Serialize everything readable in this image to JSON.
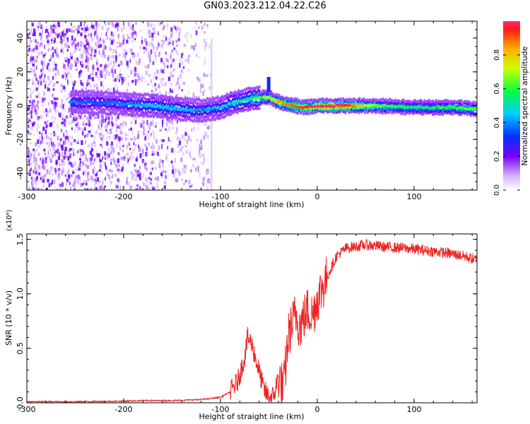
{
  "title": "GN03.2023.212.04.22.C26",
  "chart_data": [
    {
      "type": "heatmap",
      "xlabel": "Height of straight line (km)",
      "ylabel": "Frequency (Hz)",
      "xlim": [
        -300,
        165
      ],
      "ylim": [
        -50,
        50
      ],
      "x_ticks": [
        -300,
        -200,
        -100,
        0,
        100
      ],
      "y_ticks": [
        -40,
        -20,
        0,
        20,
        40
      ],
      "colorbar": {
        "label": "Normalized spectral amplitude",
        "range": [
          0,
          1
        ],
        "ticks": [
          "0.0",
          "0.2",
          "0.4",
          "0.6",
          "0.8"
        ],
        "colormap": "rainbow (violet → blue → cyan → green → yellow → red)"
      },
      "ridge": [
        {
          "x": -255,
          "freq": 2,
          "amp": 0.35
        },
        {
          "x": -230,
          "freq": 2,
          "amp": 0.3
        },
        {
          "x": -200,
          "freq": 1,
          "amp": 0.35
        },
        {
          "x": -170,
          "freq": 0,
          "amp": 0.4
        },
        {
          "x": -140,
          "freq": -2,
          "amp": 0.4
        },
        {
          "x": -120,
          "freq": -3,
          "amp": 0.35
        },
        {
          "x": -100,
          "freq": -1,
          "amp": 0.4
        },
        {
          "x": -85,
          "freq": 2,
          "amp": 0.45
        },
        {
          "x": -70,
          "freq": 4,
          "amp": 0.5
        },
        {
          "x": -50,
          "freq": 5,
          "amp": 0.65
        },
        {
          "x": -40,
          "freq": 2,
          "amp": 0.8
        },
        {
          "x": -25,
          "freq": 0,
          "amp": 0.85
        },
        {
          "x": -10,
          "freq": -1,
          "amp": 0.9
        },
        {
          "x": 0,
          "freq": 0,
          "amp": 1.0
        },
        {
          "x": 20,
          "freq": 0,
          "amp": 1.0
        },
        {
          "x": 60,
          "freq": 0,
          "amp": 0.6
        },
        {
          "x": 100,
          "freq": -1,
          "amp": 0.5
        },
        {
          "x": 140,
          "freq": -1,
          "amp": 0.55
        },
        {
          "x": 165,
          "freq": -2,
          "amp": 0.6
        }
      ],
      "noise_region": {
        "x_from": -300,
        "x_to": -110
      }
    },
    {
      "type": "line",
      "xlabel": "Height of straight line (km)",
      "ylabel": "SNR (10 * v/v)",
      "y_multiplier": "(x10⁴)",
      "xlim": [
        -300,
        165
      ],
      "ylim": [
        0,
        1.55
      ],
      "x_ticks": [
        -300,
        -200,
        -100,
        0,
        100
      ],
      "y_ticks": [
        "0.0",
        "0.5",
        "1.0",
        "1.5"
      ],
      "series": [
        {
          "color": "#ee2222",
          "x": [
            -300,
            -250,
            -200,
            -180,
            -150,
            -120,
            -100,
            -90,
            -82,
            -75,
            -72,
            -68,
            -62,
            -55,
            -50,
            -45,
            -40,
            -35,
            -32,
            -30,
            -26,
            -22,
            -18,
            -14,
            -10,
            -5,
            0,
            10,
            20,
            30,
            50,
            70,
            90,
            110,
            130,
            150,
            165
          ],
          "values": [
            0.01,
            0.01,
            0.015,
            0.02,
            0.02,
            0.03,
            0.05,
            0.1,
            0.2,
            0.42,
            0.6,
            0.55,
            0.35,
            0.12,
            0.05,
            0.06,
            0.25,
            0.12,
            0.4,
            0.6,
            0.72,
            0.82,
            0.7,
            0.78,
            0.85,
            0.8,
            0.95,
            1.15,
            1.35,
            1.42,
            1.45,
            1.43,
            1.42,
            1.4,
            1.38,
            1.35,
            1.31
          ]
        }
      ]
    }
  ],
  "colors": {
    "line": "#ee2222",
    "axes": "#000000"
  }
}
